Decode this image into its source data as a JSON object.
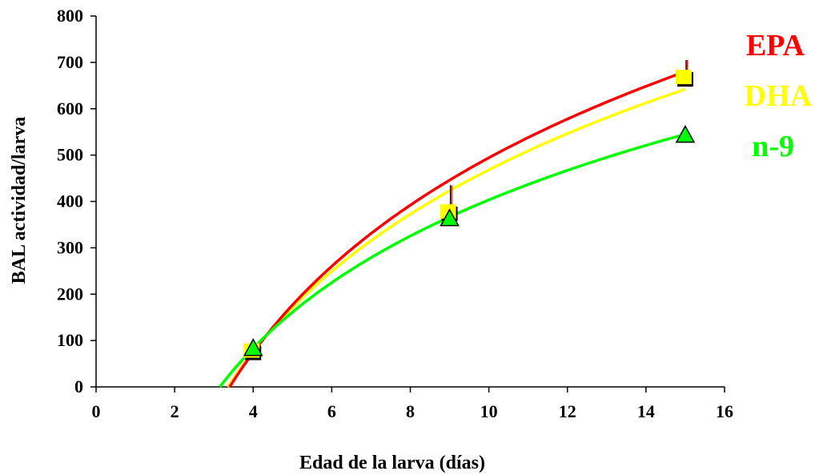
{
  "chart_data": {
    "type": "scatter",
    "xlabel": "Edad de la larva (días)",
    "ylabel": "BAL actividad/larva",
    "xlim": [
      0,
      16
    ],
    "ylim": [
      0,
      800
    ],
    "x_ticks": [
      "0",
      "2",
      "4",
      "6",
      "8",
      "10",
      "12",
      "14",
      "16"
    ],
    "y_ticks": [
      "0",
      "100",
      "200",
      "300",
      "400",
      "500",
      "600",
      "700",
      "800"
    ],
    "grid": false,
    "legend_position": "right",
    "series": [
      {
        "name": "EPA",
        "color": "#ff0000",
        "marker": "none",
        "x": [
          4,
          9,
          15
        ],
        "y": [
          75,
          375,
          665
        ],
        "errors": [
          0,
          60,
          40
        ],
        "trend": "logarithmic",
        "trend_x_intercept": 3.4
      },
      {
        "name": "DHA",
        "color": "#ffff00",
        "marker": "square",
        "x": [
          4,
          9,
          15
        ],
        "y": [
          75,
          375,
          665
        ],
        "errors": [
          0,
          0,
          0
        ],
        "trend": "logarithmic",
        "trend_x_intercept": 3.35
      },
      {
        "name": "n-9",
        "color": "#00ff00",
        "marker": "triangle",
        "x": [
          4,
          9,
          15
        ],
        "y": [
          80,
          360,
          540
        ],
        "errors": [
          0,
          0,
          0
        ],
        "trend": "logarithmic",
        "trend_x_intercept": 3.15
      }
    ],
    "trend_end_values": {
      "EPA": 680,
      "DHA": 642,
      "n-9": 545
    }
  }
}
